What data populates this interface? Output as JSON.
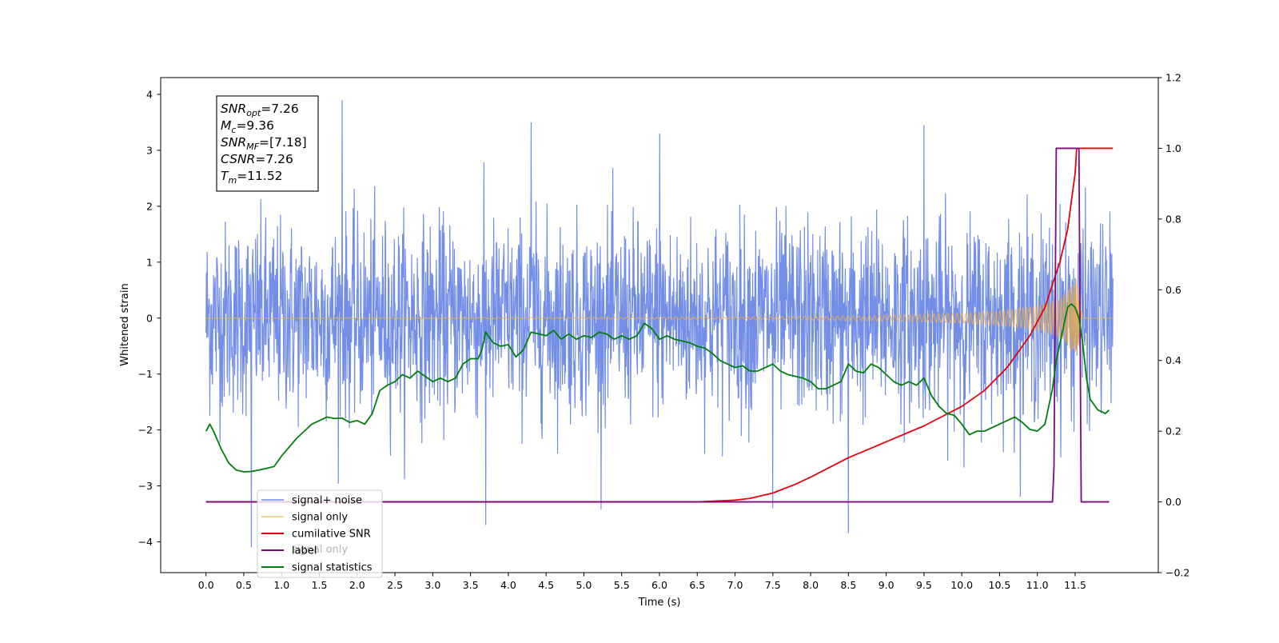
{
  "chart_data": {
    "type": "line",
    "title": "",
    "xlabel": "Time (s)",
    "ylabel_left": "Whitened strain",
    "ylabel_right": "",
    "xlim": [
      -0.6,
      12.6
    ],
    "ylim_left": [
      -4.55,
      4.3
    ],
    "ylim_right": [
      -0.2,
      1.2
    ],
    "x_ticks": [
      0.0,
      0.5,
      1.0,
      1.5,
      2.0,
      2.5,
      3.0,
      3.5,
      4.0,
      4.5,
      5.0,
      5.5,
      6.0,
      6.5,
      7.0,
      7.5,
      8.0,
      8.5,
      9.0,
      9.5,
      10.0,
      10.5,
      11.0,
      11.5
    ],
    "x_tick_labels": [
      "0.0",
      "0.5",
      "1.0",
      "1.5",
      "2.0",
      "2.5",
      "3.0",
      "3.5",
      "4.0",
      "4.5",
      "5.0",
      "5.5",
      "6.0",
      "6.5",
      "7.0",
      "7.5",
      "8.0",
      "8.5",
      "9.0",
      "9.5",
      "10.0",
      "10.5",
      "11.0",
      "11.5"
    ],
    "y_ticks_left": [
      -4,
      -3,
      -2,
      -1,
      0,
      1,
      2,
      3,
      4
    ],
    "y_tick_labels_left": [
      "−4",
      "−3",
      "−2",
      "−1",
      "0",
      "1",
      "2",
      "3",
      "4"
    ],
    "y_ticks_right": [
      -0.2,
      0.0,
      0.2,
      0.4,
      0.6,
      0.8,
      1.0,
      1.2
    ],
    "y_tick_labels_right": [
      "−0.2",
      "0.0",
      "0.2",
      "0.4",
      "0.6",
      "0.8",
      "1.0",
      "1.2"
    ],
    "grid": false,
    "legend_position": "lower-left",
    "series": [
      {
        "name": "signal+ noise",
        "axis": "left",
        "color": "#6a88e6",
        "kind": "noise",
        "x_range": [
          0.0,
          12.0
        ],
        "core_band": [
          -1.3,
          1.3
        ],
        "range": [
          -4.1,
          3.9
        ],
        "visible_spike_times": [
          1.8,
          4.3,
          6.0,
          9.5,
          3.7,
          0.6,
          8.5,
          7.5
        ],
        "visible_spike_values": [
          3.9,
          3.5,
          3.3,
          3.45,
          -3.7,
          -4.1,
          -3.85,
          -3.4
        ]
      },
      {
        "name": "signal only",
        "axis": "left",
        "color": "#f5b041",
        "kind": "chirp",
        "x_range": [
          0.0,
          12.0
        ],
        "merger_time": 11.52,
        "envelope": [
          [
            0.0,
            0.0
          ],
          [
            7.0,
            0.02
          ],
          [
            9.0,
            0.05
          ],
          [
            10.0,
            0.09
          ],
          [
            10.5,
            0.13
          ],
          [
            11.0,
            0.22
          ],
          [
            11.3,
            0.35
          ],
          [
            11.5,
            0.65
          ],
          [
            11.52,
            0.7
          ],
          [
            11.6,
            0.0
          ],
          [
            12.0,
            0.0
          ]
        ]
      },
      {
        "name": "cumilative SNR",
        "axis": "right",
        "color": "#e8000b",
        "kind": "line",
        "x": [
          0.0,
          6.0,
          6.5,
          7.0,
          7.2,
          7.5,
          7.8,
          8.0,
          8.5,
          9.0,
          9.5,
          10.0,
          10.3,
          10.6,
          10.9,
          11.1,
          11.3,
          11.4,
          11.5,
          11.52,
          12.0
        ],
        "y": [
          0.0,
          0.0,
          0.0,
          0.005,
          0.01,
          0.025,
          0.05,
          0.07,
          0.125,
          0.17,
          0.215,
          0.27,
          0.315,
          0.38,
          0.47,
          0.55,
          0.68,
          0.77,
          0.93,
          1.0,
          1.0
        ]
      },
      {
        "name": "label",
        "axis": "right",
        "color": "#7b0a7b",
        "kind": "line",
        "x": [
          0.0,
          11.2,
          11.22,
          11.25,
          11.28,
          11.52,
          11.55,
          11.58,
          11.95
        ],
        "y": [
          0.0,
          0.0,
          0.1,
          1.0,
          1.0,
          1.0,
          1.0,
          0.0,
          0.0
        ]
      },
      {
        "name": "signal statistics",
        "axis": "right",
        "color": "#00800a",
        "kind": "line",
        "x": [
          0.0,
          0.05,
          0.1,
          0.2,
          0.3,
          0.4,
          0.5,
          0.6,
          0.7,
          0.8,
          0.9,
          1.0,
          1.1,
          1.2,
          1.3,
          1.4,
          1.5,
          1.6,
          1.7,
          1.8,
          1.9,
          2.0,
          2.1,
          2.2,
          2.3,
          2.4,
          2.5,
          2.6,
          2.7,
          2.8,
          2.9,
          3.0,
          3.1,
          3.2,
          3.3,
          3.4,
          3.5,
          3.6,
          3.65,
          3.7,
          3.8,
          3.9,
          4.0,
          4.1,
          4.2,
          4.3,
          4.4,
          4.5,
          4.6,
          4.7,
          4.8,
          4.9,
          5.0,
          5.1,
          5.2,
          5.3,
          5.4,
          5.5,
          5.6,
          5.7,
          5.8,
          5.9,
          6.0,
          6.1,
          6.2,
          6.3,
          6.4,
          6.5,
          6.6,
          6.7,
          6.8,
          6.9,
          7.0,
          7.1,
          7.2,
          7.3,
          7.4,
          7.5,
          7.6,
          7.7,
          7.8,
          7.9,
          8.0,
          8.1,
          8.2,
          8.3,
          8.4,
          8.5,
          8.6,
          8.7,
          8.8,
          8.9,
          9.0,
          9.1,
          9.2,
          9.3,
          9.4,
          9.5,
          9.6,
          9.7,
          9.8,
          9.9,
          10.0,
          10.1,
          10.2,
          10.3,
          10.4,
          10.5,
          10.6,
          10.7,
          10.8,
          10.9,
          11.0,
          11.1,
          11.2,
          11.25,
          11.3,
          11.35,
          11.4,
          11.45,
          11.5,
          11.55,
          11.6,
          11.65,
          11.7,
          11.8,
          11.9,
          11.95
        ],
        "y": [
          0.2,
          0.22,
          0.2,
          0.15,
          0.11,
          0.09,
          0.085,
          0.086,
          0.09,
          0.095,
          0.1,
          0.13,
          0.155,
          0.18,
          0.2,
          0.22,
          0.23,
          0.24,
          0.236,
          0.237,
          0.225,
          0.23,
          0.22,
          0.25,
          0.315,
          0.33,
          0.34,
          0.36,
          0.35,
          0.37,
          0.355,
          0.34,
          0.35,
          0.34,
          0.35,
          0.39,
          0.405,
          0.405,
          0.43,
          0.48,
          0.45,
          0.44,
          0.445,
          0.41,
          0.43,
          0.48,
          0.475,
          0.47,
          0.485,
          0.46,
          0.475,
          0.46,
          0.47,
          0.465,
          0.48,
          0.475,
          0.46,
          0.47,
          0.46,
          0.47,
          0.505,
          0.49,
          0.46,
          0.47,
          0.46,
          0.455,
          0.45,
          0.44,
          0.435,
          0.42,
          0.4,
          0.39,
          0.38,
          0.385,
          0.37,
          0.37,
          0.38,
          0.39,
          0.37,
          0.36,
          0.355,
          0.35,
          0.34,
          0.32,
          0.32,
          0.33,
          0.34,
          0.39,
          0.37,
          0.365,
          0.39,
          0.38,
          0.36,
          0.34,
          0.33,
          0.34,
          0.33,
          0.35,
          0.3,
          0.27,
          0.25,
          0.245,
          0.22,
          0.19,
          0.2,
          0.2,
          0.21,
          0.22,
          0.23,
          0.24,
          0.225,
          0.205,
          0.2,
          0.22,
          0.32,
          0.4,
          0.45,
          0.5,
          0.55,
          0.56,
          0.55,
          0.52,
          0.45,
          0.35,
          0.29,
          0.26,
          0.25,
          0.26
        ]
      }
    ],
    "annotation": {
      "lines": [
        {
          "sym": "SNR",
          "sub": "opt",
          "value": "=7.26"
        },
        {
          "sym": "M",
          "sub": "c",
          "value": "=9.36"
        },
        {
          "sym": "SNR",
          "sub": "MF",
          "value": "=[7.18]"
        },
        {
          "sym": "CSNR",
          "sub": "",
          "value": "=7.26"
        },
        {
          "sym": "T",
          "sub": "m",
          "value": "=11.52"
        }
      ]
    },
    "legend_overlap_text": "signal only"
  }
}
